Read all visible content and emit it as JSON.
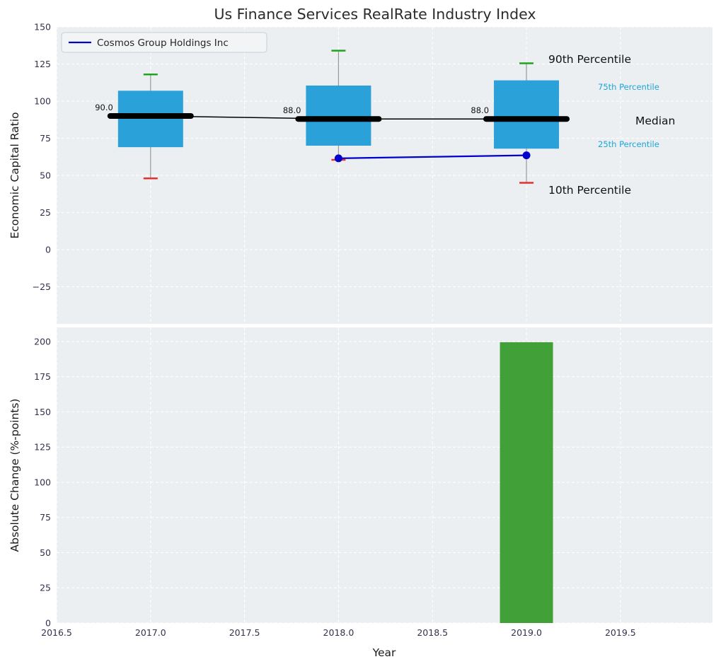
{
  "title": "Us Finance Services RealRate Industry Index",
  "legend": {
    "series_label": "Cosmos Group Holdings Inc"
  },
  "colors": {
    "box_fill": "#2aa1d8",
    "median_line": "#000000",
    "whisker": "#999999",
    "cap_top": "#1fa41f",
    "cap_bottom": "#e53030",
    "company_line": "#0000cc",
    "bar_fill": "#41a138",
    "axes_bg": "#eceff1",
    "grid": "#ffffff",
    "tick_label": "#32324e",
    "axis_label": "#1a1a1a",
    "title_color": "#2b2b2b",
    "percentile_label_large": "#111111",
    "percentile_label_small": "#1ea5d8",
    "value_label": "#111111",
    "legend_bg": "#f2f4f5",
    "legend_border": "#c8cdd2"
  },
  "chart_data": [
    {
      "type": "boxplot",
      "title": "Us Finance Services RealRate Industry Index",
      "ylabel": "Economic Capital Ratio",
      "ylim": [
        -50,
        150
      ],
      "grid": true,
      "legend_position": "upper left",
      "y_ticks": [
        {
          "v": 150,
          "label": "150"
        },
        {
          "v": 125,
          "label": "125"
        },
        {
          "v": 100,
          "label": "100"
        },
        {
          "v": 75,
          "label": "75"
        },
        {
          "v": 50,
          "label": "50"
        },
        {
          "v": 25,
          "label": "25"
        },
        {
          "v": 0,
          "label": "0"
        },
        {
          "v": -25,
          "label": "−25"
        }
      ],
      "boxes": [
        {
          "year": 2017,
          "p10": 48,
          "p25": 69,
          "median": 90.0,
          "p75": 107,
          "p90": 118,
          "median_label": "90.0"
        },
        {
          "year": 2018,
          "p10": 60.5,
          "p25": 70,
          "median": 88.0,
          "p75": 110.5,
          "p90": 134,
          "median_label": "88.0"
        },
        {
          "year": 2019,
          "p10": 45,
          "p25": 68,
          "median": 88.0,
          "p75": 114,
          "p90": 125.5,
          "median_label": "88.0"
        }
      ],
      "series": [
        {
          "name": "Cosmos Group Holdings Inc",
          "x": [
            2018,
            2019
          ],
          "y": [
            61.5,
            63.5
          ]
        }
      ],
      "annotations": [
        {
          "text": "90th Percentile",
          "style": "large"
        },
        {
          "text": "75th Percentile",
          "style": "small"
        },
        {
          "text": "Median",
          "style": "large"
        },
        {
          "text": "25th Percentile",
          "style": "small"
        },
        {
          "text": "10th Percentile",
          "style": "large"
        }
      ]
    },
    {
      "type": "bar",
      "ylabel": "Absolute Change (%-points)",
      "xlabel": "Year",
      "ylim": [
        0,
        210
      ],
      "xlim": [
        2016.5,
        2019.99
      ],
      "grid": true,
      "y_ticks": [
        {
          "v": 200,
          "label": "200"
        },
        {
          "v": 175,
          "label": "175"
        },
        {
          "v": 150,
          "label": "150"
        },
        {
          "v": 125,
          "label": "125"
        },
        {
          "v": 100,
          "label": "100"
        },
        {
          "v": 75,
          "label": "75"
        },
        {
          "v": 50,
          "label": "50"
        },
        {
          "v": 25,
          "label": "25"
        },
        {
          "v": 0,
          "label": "0"
        }
      ],
      "x_ticks": [
        {
          "v": 2016.5,
          "label": "2016.5"
        },
        {
          "v": 2017.0,
          "label": "2017.0"
        },
        {
          "v": 2017.5,
          "label": "2017.5"
        },
        {
          "v": 2018.0,
          "label": "2018.0"
        },
        {
          "v": 2018.5,
          "label": "2018.5"
        },
        {
          "v": 2019.0,
          "label": "2019.0"
        },
        {
          "v": 2019.5,
          "label": "2019.5"
        }
      ],
      "bars": [
        {
          "year": 2019,
          "value": 199.5
        }
      ]
    }
  ]
}
